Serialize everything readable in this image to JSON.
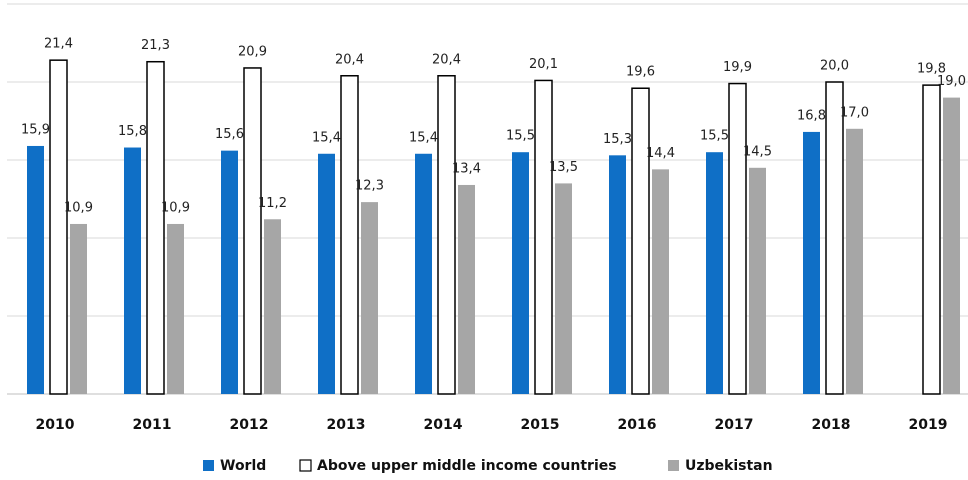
{
  "chart_data": {
    "type": "bar",
    "categories": [
      "2010",
      "2011",
      "2012",
      "2013",
      "2014",
      "2015",
      "2016",
      "2017",
      "2018",
      "2019"
    ],
    "series": [
      {
        "name": "World",
        "color": "#0f6fc6",
        "values": [
          15.9,
          15.8,
          15.6,
          15.4,
          15.4,
          15.5,
          15.3,
          15.5,
          16.8,
          null
        ],
        "value_labels": [
          "15,9",
          "15,8",
          "15,6",
          "15,4",
          "15,4",
          "15,5",
          "15,3",
          "15,5",
          "16,8",
          null
        ]
      },
      {
        "name": "Above upper middle income countries",
        "color": "#ffffff",
        "values": [
          21.4,
          21.3,
          20.9,
          20.4,
          20.4,
          20.1,
          19.6,
          19.9,
          20.0,
          19.8
        ],
        "value_labels": [
          "21,4",
          "21,3",
          "20,9",
          "20,4",
          "20,4",
          "20,1",
          "19,6",
          "19,9",
          "20,0",
          "19,8"
        ]
      },
      {
        "name": "Uzbekistan",
        "color": "#a6a6a6",
        "values": [
          10.9,
          10.9,
          11.2,
          12.3,
          13.4,
          13.5,
          14.4,
          14.5,
          17.0,
          19.0
        ],
        "value_labels": [
          "10,9",
          "10,9",
          "11,2",
          "12,3",
          "13,4",
          "13,5",
          "14,4",
          "14,5",
          "17,0",
          "19,0"
        ]
      }
    ],
    "ylim": [
      0,
      25
    ],
    "yticks": [
      0,
      5,
      10,
      15,
      20,
      25
    ],
    "grid": true,
    "legend": "bottom"
  }
}
